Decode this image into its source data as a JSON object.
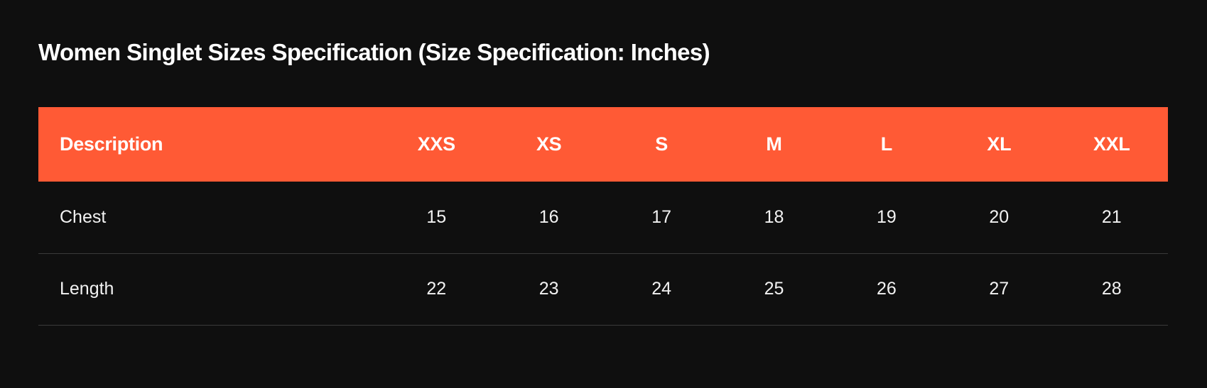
{
  "title": "Women Singlet Sizes Specification (Size Specification: Inches)",
  "colors": {
    "background": "#0f0f0f",
    "header_bg": "#ff5a35",
    "text": "#ffffff",
    "divider": "#3a3a3a"
  },
  "table": {
    "headers": [
      "Description",
      "XXS",
      "XS",
      "S",
      "M",
      "L",
      "XL",
      "XXL"
    ],
    "rows": [
      {
        "label": "Chest",
        "values": [
          "15",
          "16",
          "17",
          "18",
          "19",
          "20",
          "21"
        ]
      },
      {
        "label": "Length",
        "values": [
          "22",
          "23",
          "24",
          "25",
          "26",
          "27",
          "28"
        ]
      }
    ]
  }
}
